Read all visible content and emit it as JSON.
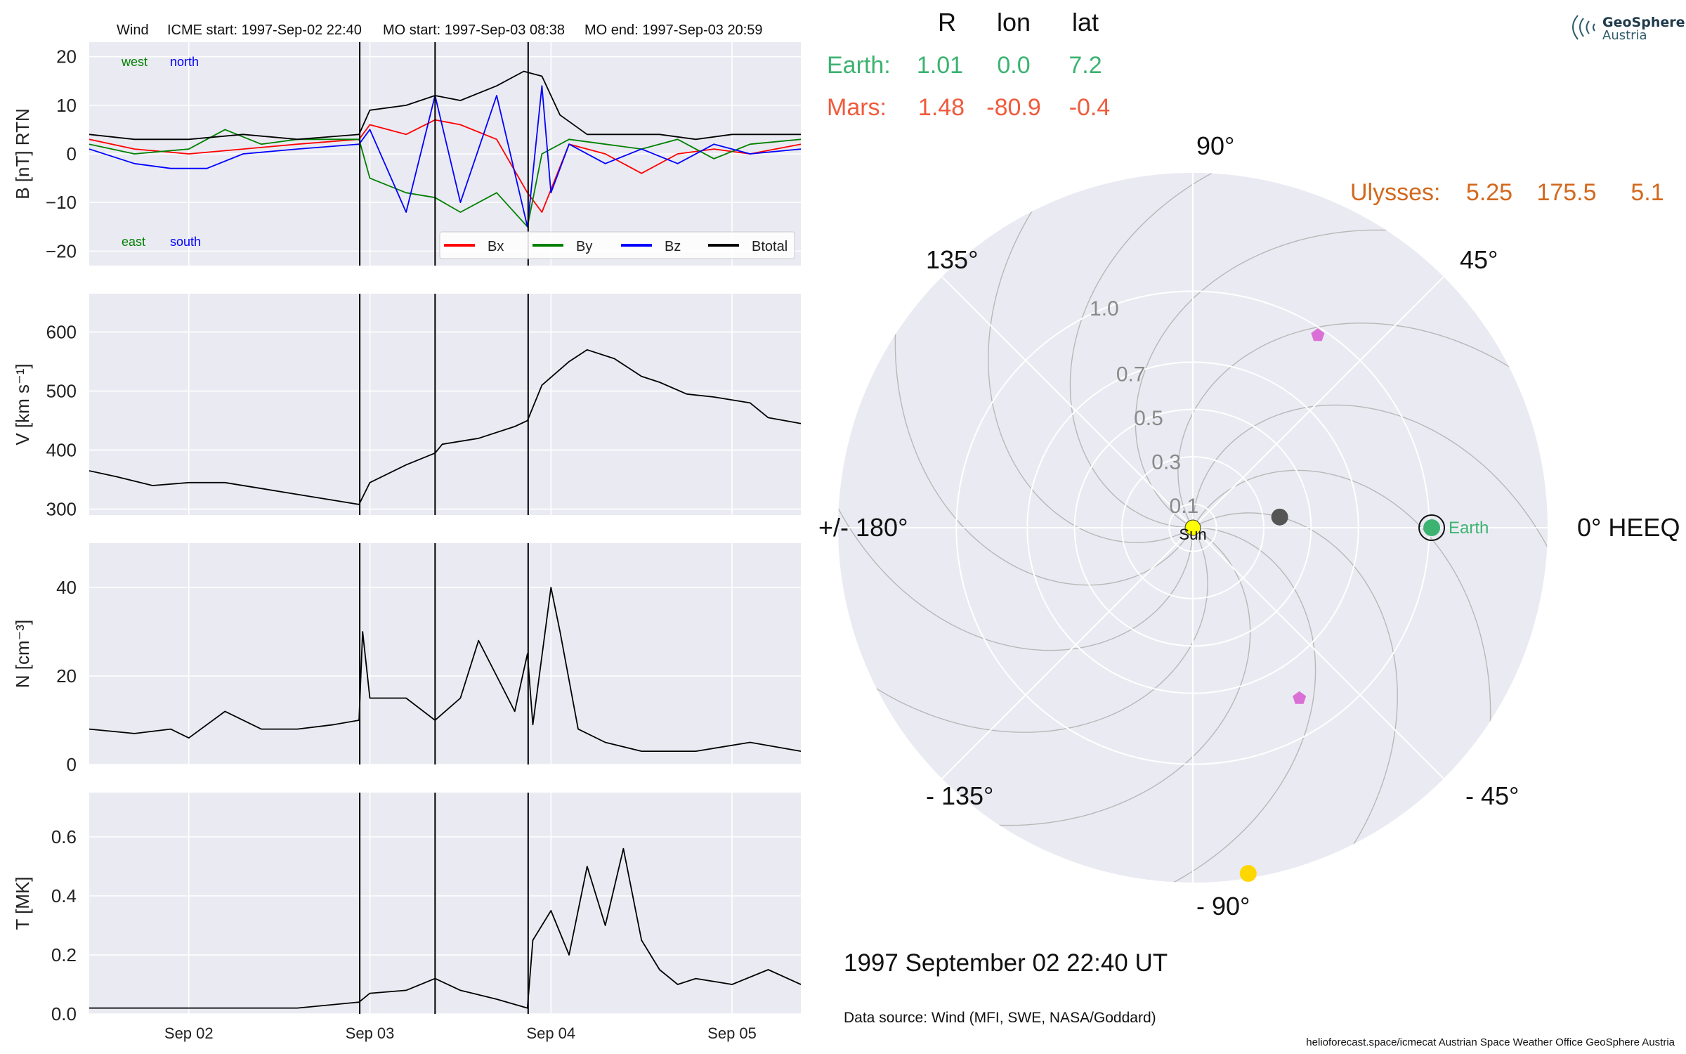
{
  "header": {
    "spacecraft": "Wind",
    "icme_start": "ICME start: 1997-Sep-02 22:40",
    "mo_start": "MO start: 1997-Sep-03 08:38",
    "mo_end": "MO end: 1997-Sep-03 20:59"
  },
  "logo": {
    "line1": "GeoSphere",
    "line2": "Austria"
  },
  "positions_table": {
    "headers": [
      "R",
      "lon",
      "lat"
    ],
    "rows": [
      {
        "label": "Earth:",
        "R": "1.01",
        "lon": "0.0",
        "lat": "7.2",
        "color": "#3cb371"
      },
      {
        "label": "Mars:",
        "R": "1.48",
        "lon": "-80.9",
        "lat": "-0.4",
        "color": "#f05a3c"
      },
      {
        "label": "Ulysses:",
        "R": "5.25",
        "lon": "175.5",
        "lat": "5.1",
        "color": "#d2691e"
      }
    ]
  },
  "date_label": "1997 September 02  22:40 UT",
  "data_source": "Data source: Wind (MFI, SWE, NASA/Goddard)",
  "footer": "helioforecast.space/icmecat   Austrian Space Weather Office   GeoSphere Austria",
  "chart_data": [
    {
      "type": "line",
      "ylabel": "B [nT] RTN",
      "ylim": [
        -23,
        23
      ],
      "yticks": [
        "20",
        "10",
        "0",
        "−10",
        "−20"
      ],
      "ytick_values": [
        20,
        10,
        0,
        -10,
        -20
      ],
      "x_range_days": [
        1.45,
        5.38
      ],
      "xtick_labels": [
        "Sep 02",
        "Sep 03",
        "Sep 04",
        "Sep 05"
      ],
      "xtick_values": [
        2,
        3,
        4,
        5
      ],
      "event_lines": [
        2.944,
        3.36,
        3.874
      ],
      "annotations": {
        "west": "west",
        "north": "north",
        "east": "east",
        "south": "south",
        "west_color": "#008000",
        "north_color": "#0000ff"
      },
      "legend": [
        "Bx",
        "By",
        "Bz",
        "Btotal"
      ],
      "legend_placement": "lower-right",
      "series": [
        {
          "name": "Bx",
          "color": "#ff0000",
          "x": [
            1.45,
            1.7,
            2.0,
            2.3,
            2.6,
            2.94,
            3.0,
            3.2,
            3.36,
            3.5,
            3.7,
            3.87,
            3.95,
            4.1,
            4.3,
            4.5,
            4.7,
            4.9,
            5.1,
            5.38
          ],
          "y": [
            3,
            1,
            0,
            1,
            2,
            3,
            6,
            4,
            7,
            6,
            3,
            -8,
            -12,
            2,
            0,
            -4,
            0,
            1,
            0,
            2
          ]
        },
        {
          "name": "By",
          "color": "#008000",
          "x": [
            1.45,
            1.7,
            2.0,
            2.2,
            2.4,
            2.6,
            2.94,
            3.0,
            3.2,
            3.36,
            3.5,
            3.7,
            3.87,
            3.95,
            4.1,
            4.3,
            4.5,
            4.7,
            4.9,
            5.1,
            5.38
          ],
          "y": [
            2,
            0,
            1,
            5,
            2,
            3,
            3,
            -5,
            -8,
            -9,
            -12,
            -8,
            -15,
            0,
            3,
            2,
            1,
            3,
            -1,
            2,
            3
          ]
        },
        {
          "name": "Bz",
          "color": "#0000ff",
          "x": [
            1.45,
            1.7,
            1.9,
            2.1,
            2.3,
            2.6,
            2.94,
            3.0,
            3.2,
            3.36,
            3.5,
            3.7,
            3.87,
            3.95,
            4.0,
            4.1,
            4.3,
            4.5,
            4.7,
            4.9,
            5.1,
            5.38
          ],
          "y": [
            1,
            -2,
            -3,
            -3,
            0,
            1,
            2,
            5,
            -12,
            12,
            -10,
            12,
            -15,
            14,
            -8,
            2,
            -2,
            1,
            -2,
            2,
            0,
            1
          ]
        },
        {
          "name": "Btotal",
          "color": "#000000",
          "x": [
            1.45,
            1.7,
            2.0,
            2.3,
            2.6,
            2.94,
            3.0,
            3.2,
            3.36,
            3.5,
            3.7,
            3.85,
            3.95,
            4.05,
            4.2,
            4.4,
            4.6,
            4.8,
            5.0,
            5.2,
            5.38
          ],
          "y": [
            4,
            3,
            3,
            4,
            3,
            4,
            9,
            10,
            12,
            11,
            14,
            17,
            16,
            8,
            4,
            4,
            4,
            3,
            4,
            4,
            4
          ]
        }
      ]
    },
    {
      "type": "line",
      "ylabel": "V [km s⁻¹]",
      "ylim": [
        290,
        665
      ],
      "yticks": [
        "600",
        "500",
        "400",
        "300"
      ],
      "ytick_values": [
        600,
        500,
        400,
        300
      ],
      "x_range_days": [
        1.45,
        5.38
      ],
      "xtick_values": [
        2,
        3,
        4,
        5
      ],
      "event_lines": [
        2.944,
        3.36,
        3.874
      ],
      "series": [
        {
          "name": "V",
          "color": "#000000",
          "x": [
            1.45,
            1.6,
            1.8,
            2.0,
            2.2,
            2.4,
            2.6,
            2.8,
            2.94,
            3.0,
            3.2,
            3.36,
            3.4,
            3.6,
            3.8,
            3.87,
            3.95,
            4.1,
            4.2,
            4.35,
            4.5,
            4.6,
            4.75,
            4.9,
            5.1,
            5.2,
            5.38
          ],
          "y": [
            365,
            355,
            340,
            345,
            345,
            335,
            325,
            315,
            308,
            345,
            375,
            395,
            410,
            420,
            440,
            450,
            510,
            550,
            570,
            555,
            525,
            515,
            495,
            490,
            480,
            455,
            445
          ]
        }
      ]
    },
    {
      "type": "line",
      "ylabel": "N [cm⁻³]",
      "ylim": [
        0,
        50
      ],
      "yticks": [
        "40",
        "20",
        "0"
      ],
      "ytick_values": [
        40,
        20,
        0
      ],
      "x_range_days": [
        1.45,
        5.38
      ],
      "xtick_values": [
        2,
        3,
        4,
        5
      ],
      "event_lines": [
        2.944,
        3.36,
        3.874
      ],
      "series": [
        {
          "name": "N",
          "color": "#000000",
          "x": [
            1.45,
            1.7,
            1.9,
            2.0,
            2.2,
            2.4,
            2.6,
            2.8,
            2.94,
            2.96,
            3.0,
            3.2,
            3.36,
            3.5,
            3.6,
            3.7,
            3.8,
            3.87,
            3.9,
            4.0,
            4.05,
            4.15,
            4.3,
            4.5,
            4.8,
            5.1,
            5.38
          ],
          "y": [
            8,
            7,
            8,
            6,
            12,
            8,
            8,
            9,
            10,
            30,
            15,
            15,
            10,
            15,
            28,
            20,
            12,
            25,
            9,
            40,
            30,
            8,
            5,
            3,
            3,
            5,
            3
          ]
        }
      ]
    },
    {
      "type": "line",
      "ylabel": "T [MK]",
      "ylim": [
        0,
        0.75
      ],
      "yticks": [
        "0.6",
        "0.4",
        "0.2",
        "0.0"
      ],
      "ytick_values": [
        0.6,
        0.4,
        0.2,
        0.0
      ],
      "x_range_days": [
        1.45,
        5.38
      ],
      "xtick_values": [
        2,
        3,
        4,
        5
      ],
      "event_lines": [
        2.944,
        3.36,
        3.874
      ],
      "series": [
        {
          "name": "T",
          "color": "#000000",
          "x": [
            1.45,
            1.8,
            2.2,
            2.6,
            2.94,
            3.0,
            3.2,
            3.36,
            3.5,
            3.7,
            3.87,
            3.9,
            4.0,
            4.1,
            4.2,
            4.3,
            4.4,
            4.5,
            4.6,
            4.7,
            4.8,
            5.0,
            5.2,
            5.38
          ],
          "y": [
            0.02,
            0.02,
            0.02,
            0.02,
            0.04,
            0.07,
            0.08,
            0.12,
            0.08,
            0.05,
            0.02,
            0.25,
            0.35,
            0.2,
            0.5,
            0.3,
            0.56,
            0.25,
            0.15,
            0.1,
            0.12,
            0.1,
            0.15,
            0.1
          ]
        }
      ]
    },
    {
      "type": "scatter",
      "subtype": "polar-heliosphere",
      "radial_ticks": [
        "0.1",
        "0.3",
        "0.5",
        "0.7",
        "1.0"
      ],
      "radial_tick_values": [
        0.1,
        0.3,
        0.5,
        0.7,
        1.0
      ],
      "angle_labels": [
        "0° HEEQ",
        "45°",
        "90°",
        "135°",
        "+/- 180°",
        "- 135°",
        "- 90°",
        "- 45°"
      ],
      "angle_label_values": [
        0,
        45,
        90,
        135,
        180,
        -135,
        -90,
        -45
      ],
      "bodies": [
        {
          "name": "Sun",
          "label": "Sun",
          "r": 0,
          "lon": 0,
          "color": "#ffff00"
        },
        {
          "name": "Earth",
          "label": "Earth",
          "r": 1.01,
          "lon": 0.0,
          "color": "#3cb371"
        },
        {
          "name": "Mars",
          "label": "",
          "r": 1.48,
          "lon": -80.9,
          "color": "#ffd700"
        },
        {
          "name": "spacecraft-grey",
          "label": "",
          "r": 0.37,
          "lon": 7,
          "color": "#555555"
        },
        {
          "name": "spacecraft-pink-north",
          "label": "",
          "r": 0.97,
          "lon": 57,
          "color": "#da70d6"
        },
        {
          "name": "spacecraft-pink-south",
          "label": "",
          "r": 0.85,
          "lon": -58,
          "color": "#da70d6"
        }
      ]
    }
  ]
}
